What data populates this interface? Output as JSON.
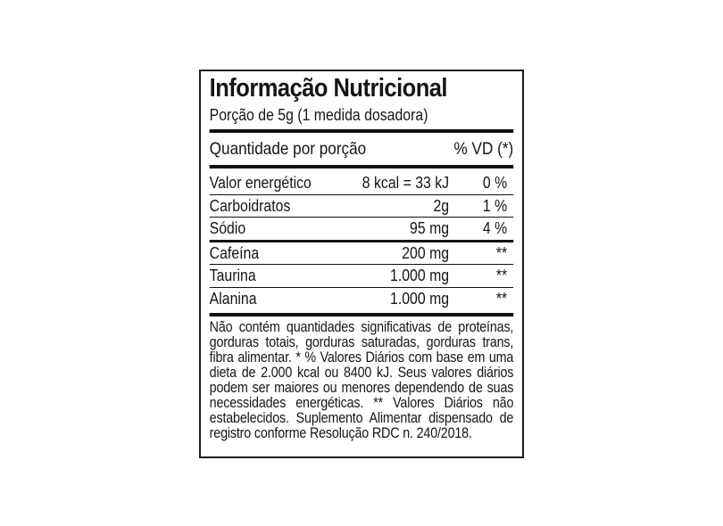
{
  "label": {
    "title": "Informação Nutricional",
    "serving_line": "Porção de 5g (1 medida dosadora)",
    "header": {
      "quantity": "Quantidade por porção",
      "dv": "% VD (*)"
    },
    "rows": [
      {
        "name": "Valor energético",
        "amount": "8 kcal = 33 kJ",
        "dv": "0 %",
        "group": "main"
      },
      {
        "name": "Carboidratos",
        "amount": "2g",
        "dv": "1 %",
        "group": "main"
      },
      {
        "name": "Sódio",
        "amount": "95 mg",
        "dv": "4 %",
        "group": "main"
      },
      {
        "name": "Cafeína",
        "amount": "200 mg",
        "dv": "**",
        "group": "supplement"
      },
      {
        "name": "Taurina",
        "amount": "1.000 mg",
        "dv": "**",
        "group": "supplement"
      },
      {
        "name": "Alanina",
        "amount": "1.000 mg",
        "dv": "**",
        "group": "supplement"
      }
    ],
    "footnote": "Não contém quantidades significativas de proteínas, gorduras totais, gorduras saturadas, gorduras trans, fibra alimentar. * % Valores Diários com base em uma dieta de 2.000 kcal ou 8400 kJ. Seus valores diários podem ser maiores ou menores dependendo de suas necessidades energéticas. ** Valores Diários não estabelecidos. Suplemento Alimentar dispensado de registro conforme Resolução RDC n. 240/2018.",
    "colors": {
      "text": "#161616",
      "rule": "#111111",
      "background": "#ffffff"
    }
  }
}
